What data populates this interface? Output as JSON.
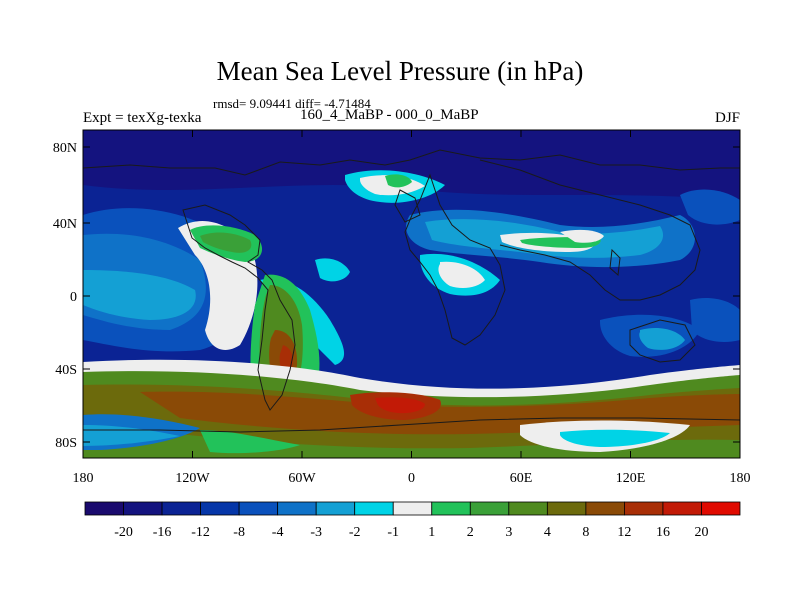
{
  "title": "Mean Sea Level Pressure (in hPa)",
  "stats_line": "rmsd= 9.09441 diff= -4.71484",
  "experiment_label": "Expt = texXg-texka",
  "difference_label": "160_4_MaBP - 000_0_MaBP",
  "season": "DJF",
  "map": {
    "lat_ticks": [
      "80N",
      "40N",
      "0",
      "40S",
      "80S"
    ],
    "lon_ticks": [
      "180",
      "120W",
      "60W",
      "0",
      "60E",
      "120E",
      "180"
    ]
  },
  "colorbar": {
    "labels": [
      "-20",
      "-16",
      "-12",
      "-8",
      "-4",
      "-3",
      "-2",
      "-1",
      "1",
      "2",
      "3",
      "4",
      "8",
      "12",
      "16",
      "20"
    ],
    "colors": [
      "#1a0a6e",
      "#14137f",
      "#0b2394",
      "#0536a8",
      "#0a51bc",
      "#0f72c8",
      "#14a0d4",
      "#00d3e6",
      "#eeeeee",
      "#22c25a",
      "#3aa038",
      "#4f8a1f",
      "#6c6a0c",
      "#8a4a06",
      "#a82e06",
      "#c21a06",
      "#e00a00"
    ]
  }
}
